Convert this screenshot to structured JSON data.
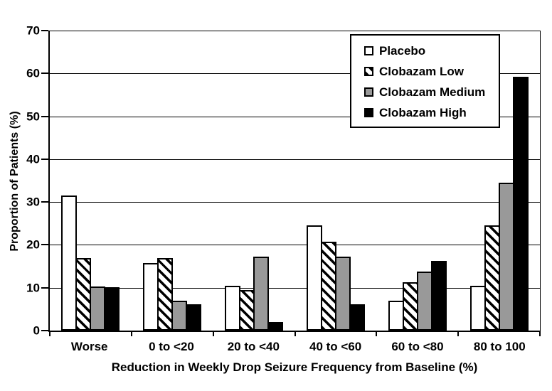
{
  "figure": {
    "background": "#ffffff",
    "axis_color": "#000000"
  },
  "chart_data": {
    "type": "bar",
    "title": "",
    "xlabel": "Reduction in Weekly Drop Seizure Frequency from Baseline (%)",
    "ylabel": "Proportion of Patients (%)",
    "ylim": [
      0,
      70
    ],
    "ytick_step": 10,
    "ytick_labels": [
      "0",
      "10",
      "20",
      "30",
      "40",
      "50",
      "60",
      "70"
    ],
    "grid": "horizontal",
    "legend_position": "top-right-inside",
    "categories": [
      "Worse",
      "0 to <20",
      "20 to <40",
      "40 to <60",
      "60 to <80",
      "80 to 100"
    ],
    "series": [
      {
        "name": "Placebo",
        "fill": "white",
        "color": "#ffffff",
        "values": [
          31.6,
          15.8,
          10.5,
          24.6,
          7.0,
          10.5
        ]
      },
      {
        "name": "Clobazam Low",
        "fill": "hatch",
        "color": "#000000",
        "values": [
          17.0,
          17.0,
          9.4,
          20.8,
          11.3,
          24.5
        ]
      },
      {
        "name": "Clobazam Medium",
        "fill": "gray",
        "color": "#999999",
        "values": [
          10.3,
          6.9,
          17.2,
          17.2,
          13.8,
          34.5
        ]
      },
      {
        "name": "Clobazam High",
        "fill": "black",
        "color": "#000000",
        "values": [
          10.2,
          6.1,
          2.0,
          6.1,
          16.3,
          59.2
        ]
      }
    ]
  }
}
